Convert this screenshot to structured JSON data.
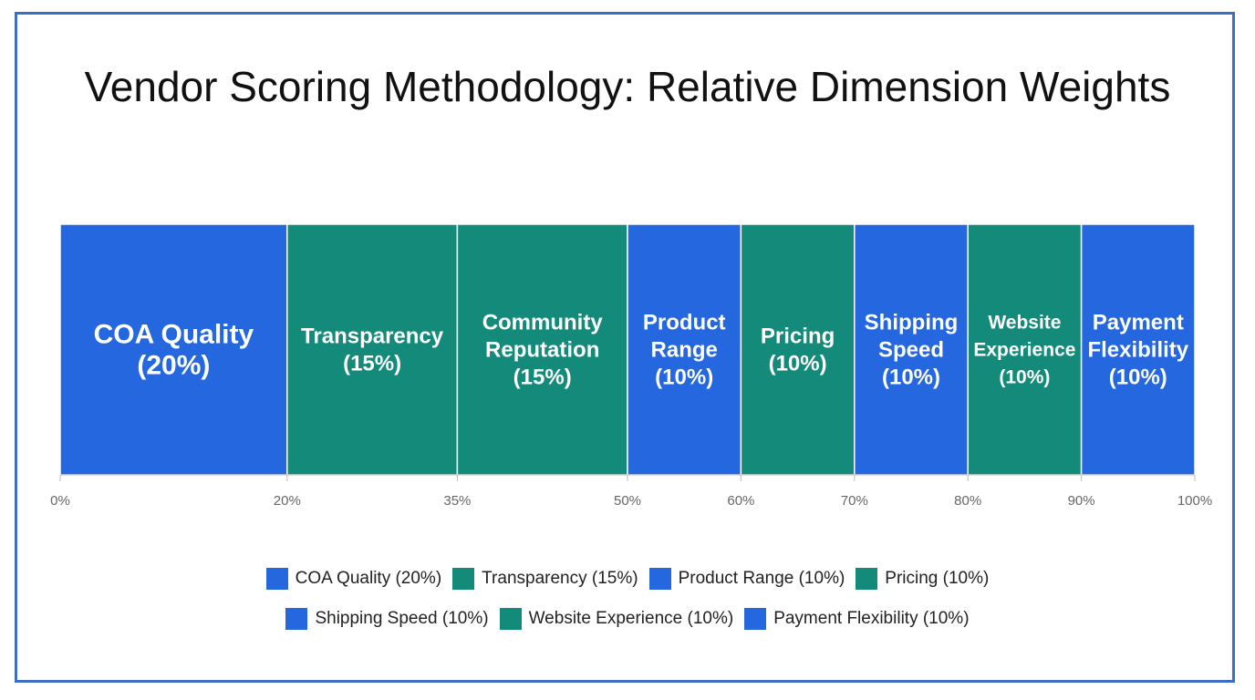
{
  "colors": {
    "blue": "#2467df",
    "teal": "#138a7a",
    "frame": "#3a6fc4"
  },
  "chart_data": {
    "type": "bar",
    "title": "Vendor Scoring Methodology: Relative Dimension Weights",
    "orientation": "horizontal-stacked",
    "xlim": [
      0,
      100
    ],
    "unit": "%",
    "grid": false,
    "legend_position": "bottom",
    "segments": [
      {
        "name": "COA Quality",
        "pct_text": "(20%)",
        "value": 20,
        "color": "blue",
        "lines": [
          "COA Quality",
          "(20%)"
        ]
      },
      {
        "name": "Transparency",
        "pct_text": "(15%)",
        "value": 15,
        "color": "teal",
        "lines": [
          "Transparency",
          "(15%)"
        ]
      },
      {
        "name": "Community Reputation",
        "pct_text": "(15%)",
        "value": 15,
        "color": "teal",
        "lines": [
          "Community",
          "Reputation",
          "(15%)"
        ]
      },
      {
        "name": "Product Range",
        "pct_text": "(10%)",
        "value": 10,
        "color": "blue",
        "lines": [
          "Product",
          "Range",
          "(10%)"
        ]
      },
      {
        "name": "Pricing",
        "pct_text": "(10%)",
        "value": 10,
        "color": "teal",
        "lines": [
          "Pricing",
          "(10%)"
        ]
      },
      {
        "name": "Shipping Speed",
        "pct_text": "(10%)",
        "value": 10,
        "color": "blue",
        "lines": [
          "Shipping",
          "Speed",
          "(10%)"
        ]
      },
      {
        "name": "Website Experience",
        "pct_text": "(10%)",
        "value": 10,
        "color": "teal",
        "lines": [
          "Website",
          "Experience",
          "(10%)"
        ]
      },
      {
        "name": "Payment Flexibility",
        "pct_text": "(10%)",
        "value": 10,
        "color": "blue",
        "lines": [
          "Payment",
          "Flexibility",
          "(10%)"
        ]
      }
    ],
    "ticks": [
      {
        "value": 0,
        "label": "0%"
      },
      {
        "value": 20,
        "label": "20%"
      },
      {
        "value": 35,
        "label": "35%"
      },
      {
        "value": 50,
        "label": "50%"
      },
      {
        "value": 60,
        "label": "60%"
      },
      {
        "value": 70,
        "label": "70%"
      },
      {
        "value": 80,
        "label": "80%"
      },
      {
        "value": 90,
        "label": "90%"
      },
      {
        "value": 100,
        "label": "100%"
      }
    ],
    "legend": [
      [
        {
          "label": "COA Quality (20%)",
          "color": "blue"
        },
        {
          "label": "Transparency (15%)",
          "color": "teal"
        },
        {
          "label": "Product Range (10%)",
          "color": "blue"
        },
        {
          "label": "Pricing (10%)",
          "color": "teal"
        }
      ],
      [
        {
          "label": "Shipping Speed (10%)",
          "color": "blue"
        },
        {
          "label": "Website Experience (10%)",
          "color": "teal"
        },
        {
          "label": "Payment Flexibility (10%)",
          "color": "blue"
        }
      ]
    ]
  }
}
